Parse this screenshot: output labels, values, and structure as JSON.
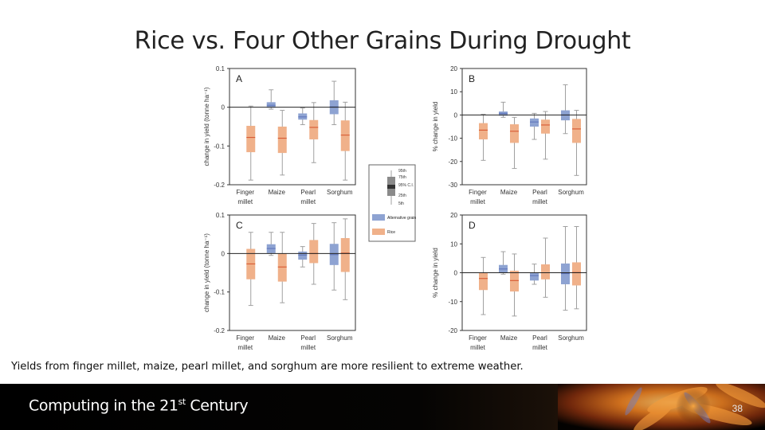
{
  "slide": {
    "title": "Rice vs. Four Other Grains During Drought",
    "caption": "Yields from finger millet, maize, pearl millet, and sorghum are more resilient to extreme weather.",
    "footer_title": "Computing in the 21",
    "footer_sup": "st",
    "footer_title_end": " Century",
    "page_number": "38"
  },
  "colors": {
    "alternative": "#8ea3d2",
    "rice": "#f0b18a",
    "median": "#d4502a",
    "whisker": "#a0a0a0"
  },
  "legend": {
    "ci_labels": [
      "95th",
      "75th",
      "95% C.I.",
      "25th",
      "5th"
    ],
    "items": [
      {
        "label": "Alternative grain",
        "color_key": "alternative"
      },
      {
        "label": "Rice",
        "color_key": "rice"
      }
    ]
  },
  "chart_data": [
    {
      "type": "boxplot",
      "panel": "A",
      "ylabel": "change in yield (tonne ha⁻¹)",
      "ylim": [
        -0.2,
        0.1
      ],
      "yticks": [
        0.1,
        0,
        -0.1,
        -0.2
      ],
      "ytick_labels": [
        "0.1",
        "0",
        "-0.1",
        "-0.2"
      ],
      "categories": [
        "Finger millet",
        "Maize",
        "Pearl millet",
        "Sorghum"
      ],
      "series": [
        {
          "name": "Alternative grain",
          "color_key": "alternative",
          "boxes": [
            null,
            {
              "p5": -0.005,
              "q1": -0.001,
              "median": 0.005,
              "q3": 0.013,
              "p95": 0.045
            },
            {
              "p5": -0.045,
              "q1": -0.032,
              "median": -0.025,
              "q3": -0.016,
              "p95": -0.002
            },
            {
              "p5": -0.045,
              "q1": -0.018,
              "median": 0.001,
              "q3": 0.018,
              "p95": 0.067
            }
          ]
        },
        {
          "name": "Rice",
          "color_key": "rice",
          "boxes": [
            {
              "p5": -0.188,
              "q1": -0.116,
              "median": -0.078,
              "q3": -0.048,
              "p95": 0.003
            },
            {
              "p5": -0.175,
              "q1": -0.118,
              "median": -0.08,
              "q3": -0.05,
              "p95": -0.008
            },
            {
              "p5": -0.143,
              "q1": -0.083,
              "median": -0.052,
              "q3": -0.033,
              "p95": 0.012
            },
            {
              "p5": -0.188,
              "q1": -0.113,
              "median": -0.072,
              "q3": -0.034,
              "p95": 0.013
            }
          ]
        }
      ]
    },
    {
      "type": "boxplot",
      "panel": "B",
      "ylabel": "% change in yield",
      "ylim": [
        -30,
        20
      ],
      "yticks": [
        20,
        10,
        0,
        -10,
        -20,
        -30
      ],
      "ytick_labels": [
        "20",
        "10",
        "0",
        "-10",
        "-20",
        "-30"
      ],
      "categories": [
        "Finger millet",
        "Maize",
        "Pearl millet",
        "Sorghum"
      ],
      "series": [
        {
          "name": "Alternative grain",
          "color_key": "alternative",
          "boxes": [
            null,
            {
              "p5": -1,
              "q1": -0.3,
              "median": 0.7,
              "q3": 1.5,
              "p95": 5.5
            },
            {
              "p5": -10.5,
              "q1": -5,
              "median": -3,
              "q3": -1.5,
              "p95": 0.7
            },
            {
              "p5": -8,
              "q1": -2.3,
              "median": 0,
              "q3": 2,
              "p95": 13
            }
          ]
        },
        {
          "name": "Rice",
          "color_key": "rice",
          "boxes": [
            {
              "p5": -19.5,
              "q1": -10.5,
              "median": -6.5,
              "q3": -3.5,
              "p95": 0.3
            },
            {
              "p5": -23,
              "q1": -12,
              "median": -7,
              "q3": -4,
              "p95": -1
            },
            {
              "p5": -19,
              "q1": -8,
              "median": -4.3,
              "q3": -2,
              "p95": 1.5
            },
            {
              "p5": -26,
              "q1": -12,
              "median": -6,
              "q3": -1.7,
              "p95": 2
            }
          ]
        }
      ]
    },
    {
      "type": "boxplot",
      "panel": "C",
      "ylabel": "change in yield (tonne ha⁻¹)",
      "ylim": [
        -0.2,
        0.1
      ],
      "yticks": [
        0.1,
        0,
        -0.1,
        -0.2
      ],
      "ytick_labels": [
        "0.1",
        "0",
        "-0.1",
        "-0.2"
      ],
      "categories": [
        "Finger millet",
        "Maize",
        "Pearl millet",
        "Sorghum"
      ],
      "series": [
        {
          "name": "Alternative grain",
          "color_key": "alternative",
          "boxes": [
            null,
            {
              "p5": -0.005,
              "q1": 0.001,
              "median": 0.013,
              "q3": 0.024,
              "p95": 0.055
            },
            {
              "p5": -0.035,
              "q1": -0.016,
              "median": -0.004,
              "q3": 0.005,
              "p95": 0.018
            },
            {
              "p5": -0.095,
              "q1": -0.03,
              "median": -0.003,
              "q3": 0.025,
              "p95": 0.08
            }
          ]
        },
        {
          "name": "Rice",
          "color_key": "rice",
          "boxes": [
            {
              "p5": -0.135,
              "q1": -0.067,
              "median": -0.027,
              "q3": 0.012,
              "p95": 0.055
            },
            {
              "p5": -0.128,
              "q1": -0.073,
              "median": -0.035,
              "q3": 0,
              "p95": 0.055
            },
            {
              "p5": -0.08,
              "q1": -0.025,
              "median": 0,
              "q3": 0.035,
              "p95": 0.078
            },
            {
              "p5": -0.12,
              "q1": -0.048,
              "median": 0.001,
              "q3": 0.04,
              "p95": 0.09
            }
          ]
        }
      ]
    },
    {
      "type": "boxplot",
      "panel": "D",
      "ylabel": "% change in yield",
      "ylim": [
        -20,
        20
      ],
      "yticks": [
        20,
        10,
        0,
        -10,
        -20
      ],
      "ytick_labels": [
        "20",
        "10",
        "0",
        "-10",
        "-20"
      ],
      "categories": [
        "Finger millet",
        "Maize",
        "Pearl millet",
        "Sorghum"
      ],
      "series": [
        {
          "name": "Alternative grain",
          "color_key": "alternative",
          "boxes": [
            null,
            {
              "p5": -0.5,
              "q1": 0,
              "median": 1.3,
              "q3": 2.7,
              "p95": 7.3
            },
            {
              "p5": -4,
              "q1": -2.7,
              "median": -1,
              "q3": 0,
              "p95": 3
            },
            {
              "p5": -13,
              "q1": -4,
              "median": -0.3,
              "q3": 3.2,
              "p95": 16
            }
          ]
        },
        {
          "name": "Rice",
          "color_key": "rice",
          "boxes": [
            {
              "p5": -14.5,
              "q1": -6,
              "median": -2,
              "q3": 0,
              "p95": 5.3
            },
            {
              "p5": -15,
              "q1": -6.5,
              "median": -2.7,
              "q3": 0.7,
              "p95": 6.5
            },
            {
              "p5": -8.5,
              "q1": -2.3,
              "median": 0,
              "q3": 2.9,
              "p95": 12
            },
            {
              "p5": -12.5,
              "q1": -4.4,
              "median": 0.1,
              "q3": 3.6,
              "p95": 16
            }
          ]
        }
      ]
    }
  ]
}
